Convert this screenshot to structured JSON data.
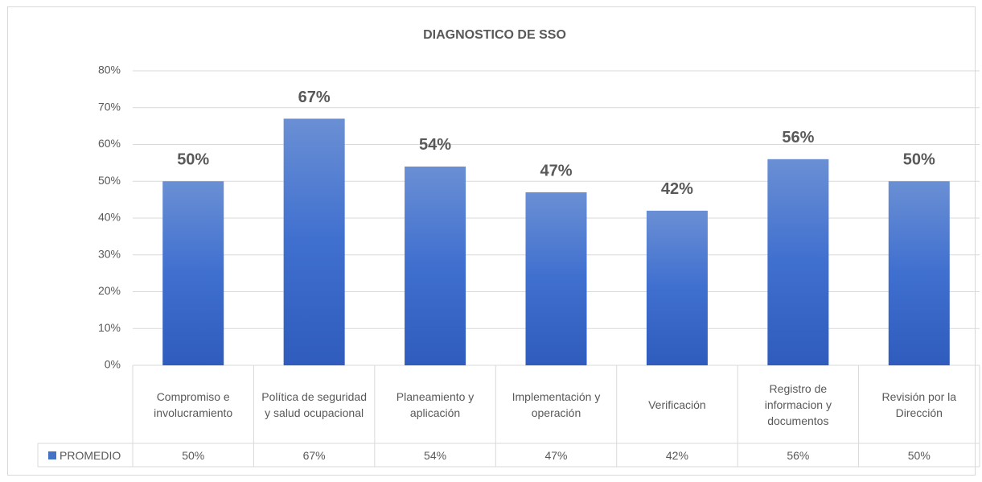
{
  "chart_data": {
    "type": "bar",
    "title": "DIAGNOSTICO DE SSO",
    "categories": [
      "Compromiso e involucramiento",
      "Política de seguridad y salud ocupacional",
      "Planeamiento y aplicación",
      "Implementación y operación",
      "Verificación",
      "Registro de informacion y documentos",
      "Revisión por la Dirección"
    ],
    "series": [
      {
        "name": "PROMEDIO",
        "color": "#4472c4",
        "values": [
          50,
          67,
          54,
          47,
          42,
          56,
          50
        ],
        "value_labels": [
          "50%",
          "67%",
          "54%",
          "47%",
          "42%",
          "56%",
          "50%"
        ]
      }
    ],
    "ylim": [
      0,
      80
    ],
    "yticks": [
      {
        "value": 0,
        "label": "0%"
      },
      {
        "value": 10,
        "label": "10%"
      },
      {
        "value": 20,
        "label": "20%"
      },
      {
        "value": 30,
        "label": "30%"
      },
      {
        "value": 40,
        "label": "40%"
      },
      {
        "value": 50,
        "label": "50%"
      },
      {
        "value": 60,
        "label": "60%"
      },
      {
        "value": 70,
        "label": "70%"
      },
      {
        "value": 80,
        "label": "80%"
      }
    ],
    "grid": true,
    "data_table": true
  }
}
